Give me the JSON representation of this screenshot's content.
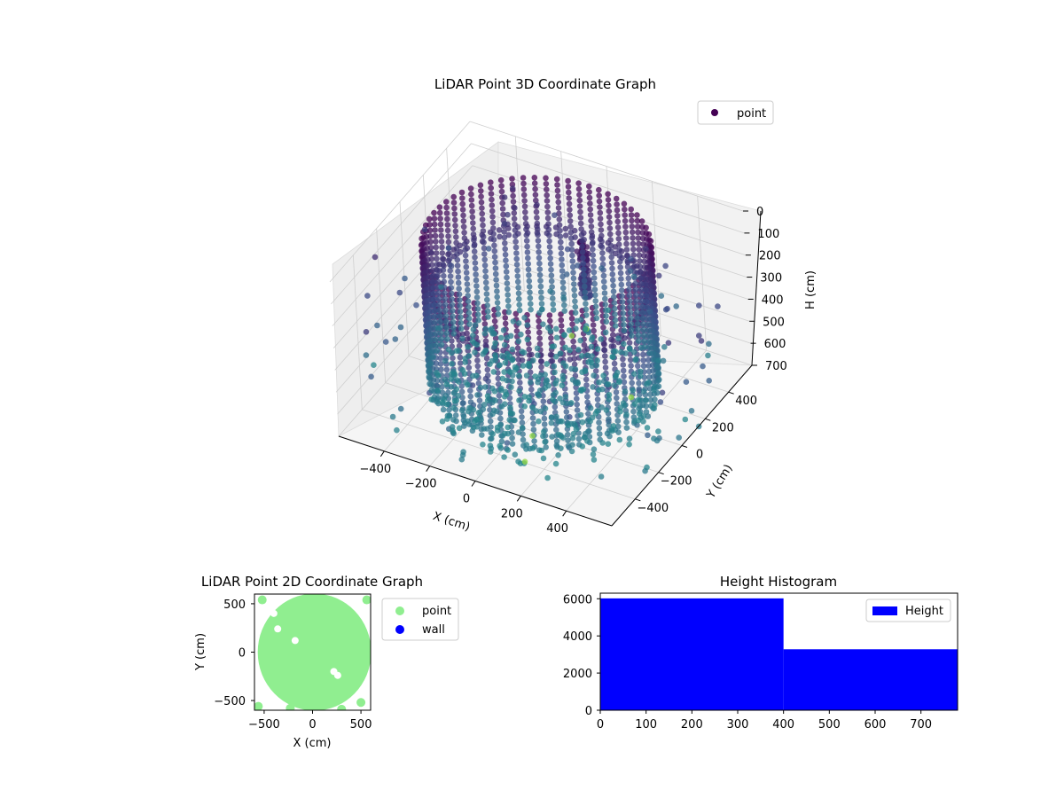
{
  "colors": {
    "background": "#ffffff",
    "pane_face": "#f2f2f2",
    "pane_grid": "#cfcfcf",
    "point_dark": "#440154",
    "point_mid": "#3b528b",
    "point_teal": "#21918c",
    "point_light": "#90d743",
    "scatter_2d": "#90ee90",
    "wall": "#0000ff",
    "histogram": "#0000ff",
    "legend_border": "#cccccc"
  },
  "chart_data": [
    {
      "type": "scatter",
      "title": "LiDAR Point 3D Coordinate Graph",
      "xlabel": "X (cm)",
      "ylabel": "Y (cm)",
      "zlabel": "H (cm)",
      "x_ticks": [
        "−400",
        "−200",
        "0",
        "200",
        "400"
      ],
      "y_ticks": [
        "−400",
        "−200",
        "0",
        "200",
        "400"
      ],
      "z_ticks": [
        "0",
        "100",
        "200",
        "300",
        "400",
        "500",
        "600",
        "700"
      ],
      "xlim": [
        -600,
        600
      ],
      "ylim": [
        -600,
        600
      ],
      "zlim": [
        700,
        0
      ],
      "z_inverted": true,
      "grid": true,
      "colormap": "viridis",
      "legend": {
        "entries": [
          "point"
        ],
        "placement": "upper-right"
      },
      "structure": {
        "ring_radius_cm": 450,
        "ring_heights_cm": [
          0,
          200,
          230
        ],
        "wall_top_cm": 0,
        "wall_bottom_cm": 600,
        "floor_height_cm": 700
      }
    },
    {
      "type": "scatter",
      "title": "LiDAR Point 2D Coordinate Graph",
      "xlabel": "X (cm)",
      "ylabel": "Y (cm)",
      "x_ticks": [
        "−500",
        "0",
        "500"
      ],
      "y_ticks": [
        "500",
        "0",
        "−500"
      ],
      "xlim": [
        -600,
        600
      ],
      "ylim": [
        -600,
        600
      ],
      "grid": false,
      "legend": {
        "entries": [
          "point",
          "wall"
        ],
        "placement": "outside-right"
      },
      "series": [
        {
          "name": "point",
          "color": "#90ee90",
          "extent_radius_cm": 600
        },
        {
          "name": "wall",
          "color": "#0000ff",
          "points": []
        }
      ]
    },
    {
      "type": "bar",
      "title": "Height Histogram",
      "xlabel": "",
      "ylabel": "",
      "x_ticks": [
        "0",
        "100",
        "200",
        "300",
        "400",
        "500",
        "600",
        "700"
      ],
      "y_ticks": [
        "0",
        "2000",
        "4000",
        "6000"
      ],
      "xlim": [
        0,
        780
      ],
      "ylim": [
        0,
        6300
      ],
      "bins": [
        {
          "from": 0,
          "to": 400,
          "count": 6020
        },
        {
          "from": 400,
          "to": 780,
          "count": 3280
        }
      ],
      "legend": {
        "entries": [
          "Height"
        ],
        "placement": "upper-right"
      }
    }
  ]
}
